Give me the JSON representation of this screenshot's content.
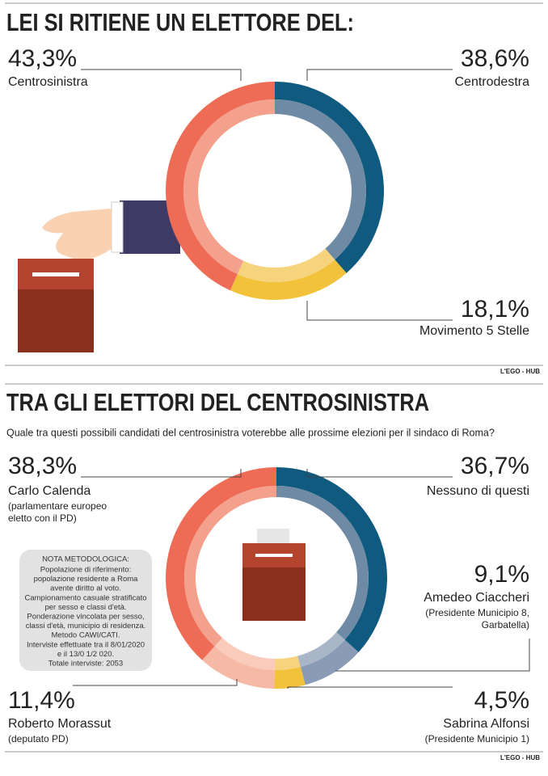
{
  "chart_data": [
    {
      "type": "donut",
      "title": "LEI SI RITIENE UN ELETTORE DEL:",
      "categories": [
        "Centrodestra",
        "Movimento 5 Stelle",
        "Centrosinistra"
      ],
      "values": [
        38.6,
        18.1,
        43.3
      ],
      "value_labels": [
        "38,6%",
        "18,1%",
        "43,3%"
      ],
      "colors": [
        "#0f5a7e",
        "#f2c23a",
        "#ee6c56"
      ],
      "inner_colors": [
        "#6f8aa4",
        "#f6d47e",
        "#f3a08c"
      ],
      "source": "L'EGO - HUB"
    },
    {
      "type": "donut",
      "title": "TRA GLI ELETTORI DEL CENTROSINISTRA",
      "subtitle": "Quale tra questi possibili candidati del centrosinistra voterebbe alle prossime elezioni per il sindaco di Roma?",
      "categories": [
        "Nessuno di questi",
        "Amedeo Ciaccheri",
        "Sabrina Alfonsi",
        "Roberto Morassut",
        "Carlo Calenda"
      ],
      "descriptions": [
        [],
        [
          "(Presidente Municipio 8,",
          "Garbatella)"
        ],
        [
          "(Presidente Municipio 1)"
        ],
        [
          "(deputato PD)"
        ],
        [
          "(parlamentare europeo",
          "eletto con il PD)"
        ]
      ],
      "values": [
        36.7,
        9.1,
        4.5,
        11.4,
        38.3
      ],
      "value_labels": [
        "36,7%",
        "9,1%",
        "4,5%",
        "11,4%",
        "38,3%"
      ],
      "colors": [
        "#0f5a7e",
        "#8a9bb5",
        "#f2c23a",
        "#f6b9a6",
        "#ee6c56"
      ],
      "inner_colors": [
        "#6f8aa4",
        "#a9b6c8",
        "#f6d47e",
        "#f8cbbb",
        "#f3a08c"
      ],
      "note_title": "NOTA METODOLOGICA:",
      "note_lines": [
        "Popolazione di riferimento:",
        "popolazione residente a Roma",
        "avente diritto al voto.",
        "Campionamento casuale stratificato",
        "per sesso e classi d'età.",
        "Ponderazione vincolata per sesso,",
        "classi d'età, municipio di residenza.",
        "Metodo CAWI/CATI.",
        "Interviste effettuate tra il 8/01/2020",
        "e il 13/0 1/2 020.",
        "Totale interviste: 2053"
      ],
      "source": "L'EGO - HUB"
    }
  ]
}
